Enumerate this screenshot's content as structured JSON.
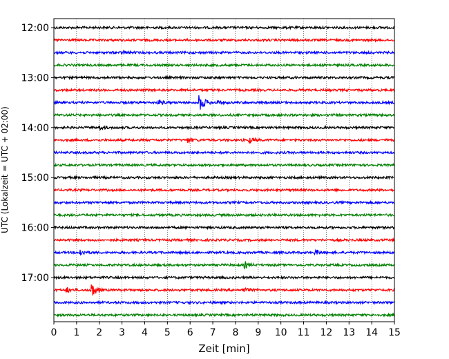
{
  "chart_data": {
    "type": "line",
    "subtype": "helicorder",
    "title": "",
    "xlabel": "Zeit  [min]",
    "ylabel": "UTC (Lokalzeit = UTC + 02:00)",
    "xlim": [
      0,
      15
    ],
    "x_ticks": [
      "0",
      "1",
      "2",
      "3",
      "4",
      "5",
      "6",
      "7",
      "8",
      "9",
      "10",
      "11",
      "12",
      "13",
      "14",
      "15"
    ],
    "y_ticks": [
      "12:00",
      "13:00",
      "14:00",
      "15:00",
      "16:00",
      "17:00"
    ],
    "y_tick_traces": [
      0,
      4,
      8,
      12,
      16,
      20
    ],
    "trace_minutes": 15,
    "trace_count": 24,
    "start_time": "12:00",
    "colors": [
      "#000000",
      "#ff0000",
      "#0000ff",
      "#008000"
    ],
    "grid": "vertical dotted lines at each minute",
    "events": [
      {
        "trace": 2,
        "minute": 3.0,
        "amplitude": 0.25
      },
      {
        "trace": 6,
        "minute": 4.6,
        "amplitude": 0.35
      },
      {
        "trace": 6,
        "minute": 6.4,
        "amplitude": 1.6
      },
      {
        "trace": 6,
        "minute": 7.2,
        "amplitude": 0.3
      },
      {
        "trace": 8,
        "minute": 2.0,
        "amplitude": 0.3
      },
      {
        "trace": 9,
        "minute": 5.9,
        "amplitude": 0.4
      },
      {
        "trace": 9,
        "minute": 8.6,
        "amplitude": 0.4
      },
      {
        "trace": 18,
        "minute": 1.15,
        "amplitude": 0.5
      },
      {
        "trace": 18,
        "minute": 11.5,
        "amplitude": 0.35
      },
      {
        "trace": 19,
        "minute": 8.4,
        "amplitude": 0.45
      },
      {
        "trace": 21,
        "minute": 0.55,
        "amplitude": 0.4
      },
      {
        "trace": 21,
        "minute": 1.65,
        "amplitude": 1.25
      },
      {
        "trace": 21,
        "minute": 8.35,
        "amplitude": 0.35
      }
    ]
  }
}
